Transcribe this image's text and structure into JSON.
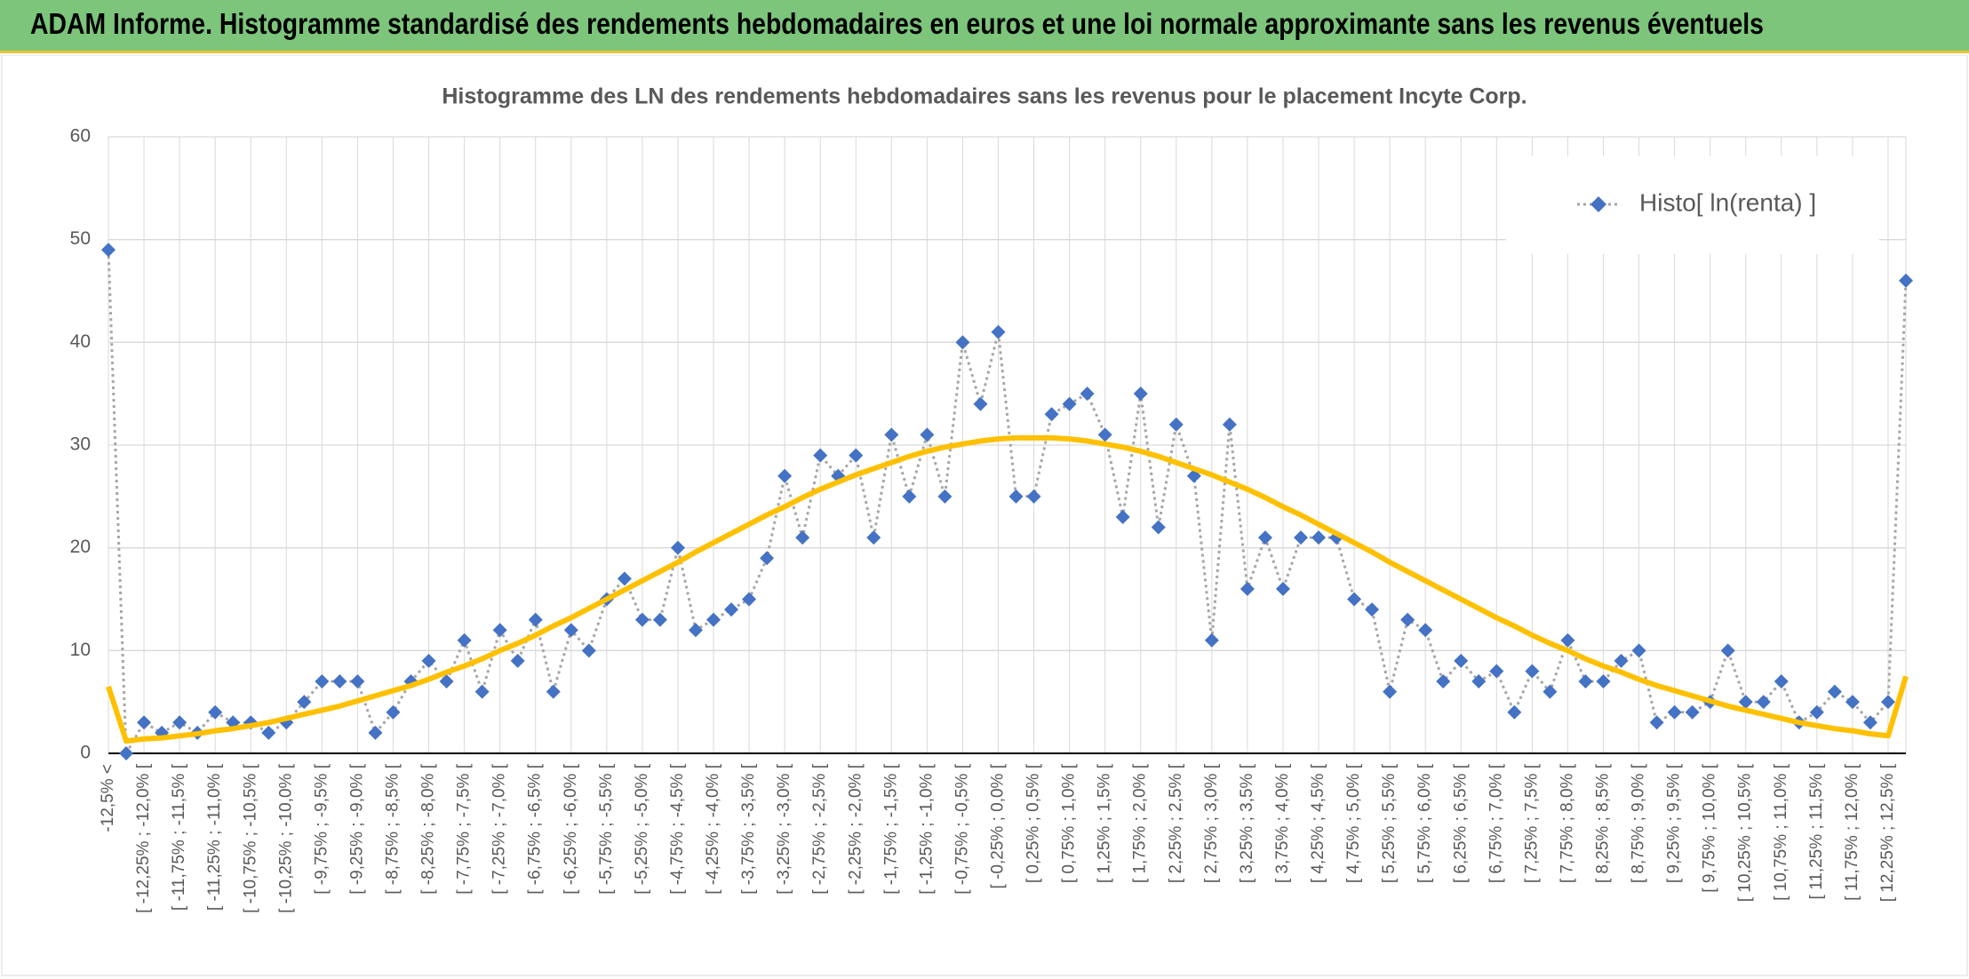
{
  "header": {
    "title": "ADAM Informe. Histogramme standardisé des rendements hebdomadaires en euros et une loi normale approximante sans les revenus éventuels"
  },
  "chart_data": {
    "type": "line",
    "title": "Histogramme des LN des rendements hebdomadaires sans les revenus pour le placement Incyte Corp.",
    "categories": [
      "-12,5% <",
      null,
      "[ -12,25% ; -12,0% [",
      null,
      "[ -11,75% ; -11,5% [",
      null,
      "[ -11,25% ; -11,0% [",
      null,
      "[ -10,75% ; -10,5% [",
      null,
      "[ -10,25% ; -10,0% [",
      null,
      "[ -9,75% ; -9,5% [",
      null,
      "[ -9,25% ; -9,0% [",
      null,
      "[ -8,75% ; -8,5% [",
      null,
      "[ -8,25% ; -8,0% [",
      null,
      "[ -7,75% ; -7,5% [",
      null,
      "[ -7,25% ; -7,0% [",
      null,
      "[ -6,75% ; -6,5% [",
      null,
      "[ -6,25% ; -6,0% [",
      null,
      "[ -5,75% ; -5,5% [",
      null,
      "[ -5,25% ; -5,0% [",
      null,
      "[ -4,75% ; -4,5% [",
      null,
      "[ -4,25% ; -4,0% [",
      null,
      "[ -3,75% ; -3,5% [",
      null,
      "[ -3,25% ; -3,0% [",
      null,
      "[ -2,75% ; -2,5% [",
      null,
      "[ -2,25% ; -2,0% [",
      null,
      "[ -1,75% ; -1,5% [",
      null,
      "[ -1,25% ; -1,0% [",
      null,
      "[ -0,75% ; -0,5% [",
      null,
      "[ -0,25% ; 0,0% [",
      null,
      "[ 0,25% ; 0,5% [",
      null,
      "[ 0,75% ; 1,0% [",
      null,
      "[ 1,25% ; 1,5% [",
      null,
      "[ 1,75% ; 2,0% [",
      null,
      "[ 2,25% ; 2,5% [",
      null,
      "[ 2,75% ; 3,0% [",
      null,
      "[ 3,25% ; 3,5% [",
      null,
      "[ 3,75% ; 4,0% [",
      null,
      "[ 4,25% ; 4,5% [",
      null,
      "[ 4,75% ; 5,0% [",
      null,
      "[ 5,25% ; 5,5% [",
      null,
      "[ 5,75% ; 6,0% [",
      null,
      "[ 6,25% ; 6,5% [",
      null,
      "[ 6,75% ; 7,0% [",
      null,
      "[ 7,25% ; 7,5% [",
      null,
      "[ 7,75% ; 8,0% [",
      null,
      "[ 8,25% ; 8,5% [",
      null,
      "[ 8,75% ; 9,0% [",
      null,
      "[ 9,25% ; 9,5% [",
      null,
      "[ 9,75% ; 10,0% [",
      null,
      "[ 10,25% ; 10,5% [",
      null,
      "[ 10,75% ; 11,0% [",
      null,
      "[ 11,25% ; 11,5% [",
      null,
      "[ 11,75% ; 12,0% [",
      null,
      "[ 12,25% ; 12,5% [",
      null
    ],
    "series": [
      {
        "name": "Histo[ ln(renta) ]",
        "color": "#4472c4",
        "line_color": "#a6a6a6",
        "values": [
          49,
          0,
          3,
          2,
          3,
          2,
          4,
          3,
          3,
          2,
          3,
          5,
          7,
          7,
          7,
          2,
          4,
          7,
          9,
          7,
          11,
          6,
          12,
          9,
          13,
          6,
          12,
          10,
          15,
          17,
          13,
          13,
          20,
          12,
          13,
          14,
          15,
          19,
          27,
          21,
          29,
          27,
          29,
          21,
          31,
          25,
          31,
          25,
          40,
          34,
          41,
          25,
          25,
          33,
          34,
          35,
          31,
          23,
          35,
          22,
          32,
          27,
          11,
          32,
          16,
          21,
          16,
          21,
          21,
          21,
          15,
          14,
          6,
          13,
          12,
          7,
          9,
          7,
          8,
          4,
          8,
          6,
          11,
          7,
          7,
          9,
          10,
          3,
          4,
          4,
          5,
          10,
          5,
          5,
          7,
          3,
          4,
          6,
          5,
          3,
          5,
          46
        ]
      },
      {
        "color": "#ffc000",
        "values": [
          6.5,
          1.2,
          1.4,
          1.5,
          1.7,
          1.9,
          2.2,
          2.4,
          2.7,
          3.0,
          3.4,
          3.8,
          4.2,
          4.6,
          5.1,
          5.6,
          6.1,
          6.6,
          7.2,
          7.9,
          8.5,
          9.2,
          10.0,
          10.7,
          11.5,
          12.4,
          13.2,
          14.1,
          15.0,
          15.9,
          16.8,
          17.7,
          18.6,
          19.6,
          20.5,
          21.4,
          22.3,
          23.2,
          24.0,
          24.9,
          25.7,
          26.4,
          27.1,
          27.7,
          28.3,
          28.9,
          29.4,
          29.8,
          30.1,
          30.4,
          30.6,
          30.7,
          30.7,
          30.7,
          30.6,
          30.4,
          30.1,
          29.8,
          29.4,
          28.9,
          28.3,
          27.7,
          27.1,
          26.4,
          25.7,
          24.9,
          24.0,
          23.2,
          22.3,
          21.4,
          20.5,
          19.6,
          18.6,
          17.7,
          16.8,
          15.9,
          15.0,
          14.1,
          13.2,
          12.4,
          11.5,
          10.7,
          10.0,
          9.2,
          8.5,
          7.9,
          7.2,
          6.6,
          6.1,
          5.6,
          5.1,
          4.6,
          4.2,
          3.8,
          3.4,
          3.0,
          2.7,
          2.4,
          2.2,
          1.9,
          1.7,
          7.5
        ]
      }
    ],
    "ylim": [
      0,
      60
    ],
    "yticks": [
      0,
      10,
      20,
      30,
      40,
      50,
      60
    ],
    "grid": true,
    "legend": "top-right"
  }
}
